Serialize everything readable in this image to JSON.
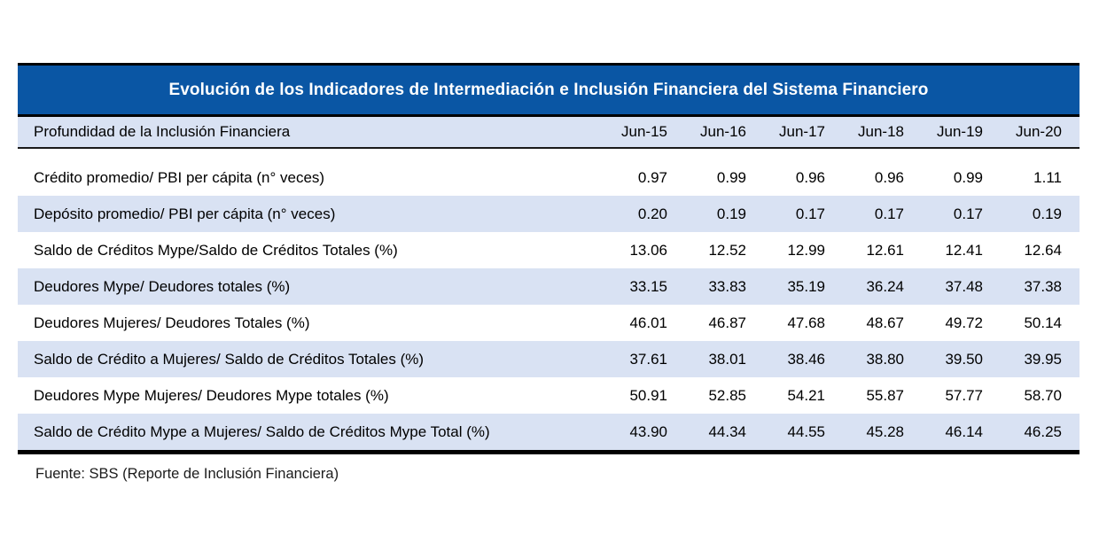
{
  "table": {
    "title": "Evolución de los Indicadores de Intermediación e Inclusión Financiera del Sistema Financiero",
    "header": {
      "label": "Profundidad de la Inclusión Financiera",
      "columns": [
        "Jun-15",
        "Jun-16",
        "Jun-17",
        "Jun-18",
        "Jun-19",
        "Jun-20"
      ]
    },
    "rows": [
      {
        "label": "Crédito promedio/ PBI per cápita (n° veces)",
        "values": [
          "0.97",
          "0.99",
          "0.96",
          "0.96",
          "0.99",
          "1.11"
        ]
      },
      {
        "label": "Depósito promedio/ PBI per cápita (n° veces)",
        "values": [
          "0.20",
          "0.19",
          "0.17",
          "0.17",
          "0.17",
          "0.19"
        ]
      },
      {
        "label": "Saldo de Créditos Mype/Saldo de Créditos Totales (%)",
        "values": [
          "13.06",
          "12.52",
          "12.99",
          "12.61",
          "12.41",
          "12.64"
        ]
      },
      {
        "label": "Deudores Mype/ Deudores totales (%)",
        "values": [
          "33.15",
          "33.83",
          "35.19",
          "36.24",
          "37.48",
          "37.38"
        ]
      },
      {
        "label": "Deudores Mujeres/ Deudores Totales (%)",
        "values": [
          "46.01",
          "46.87",
          "47.68",
          "48.67",
          "49.72",
          "50.14"
        ]
      },
      {
        "label": "Saldo de Crédito a Mujeres/ Saldo de Créditos Totales (%)",
        "values": [
          "37.61",
          "38.01",
          "38.46",
          "38.80",
          "39.50",
          "39.95"
        ]
      },
      {
        "label": "Deudores Mype Mujeres/ Deudores Mype totales (%)",
        "values": [
          "50.91",
          "52.85",
          "54.21",
          "55.87",
          "57.77",
          "58.70"
        ]
      },
      {
        "label": "Saldo de Crédito Mype a Mujeres/ Saldo de Créditos Mype Total (%)",
        "values": [
          "43.90",
          "44.34",
          "44.55",
          "45.28",
          "46.14",
          "46.25"
        ]
      }
    ],
    "source_note": "Fuente: SBS (Reporte de Inclusión Financiera)"
  },
  "colors": {
    "header_bg": "#0A56A4",
    "row_shade": "#D9E2F3",
    "border": "#000000",
    "title_text": "#FFFFFF"
  }
}
